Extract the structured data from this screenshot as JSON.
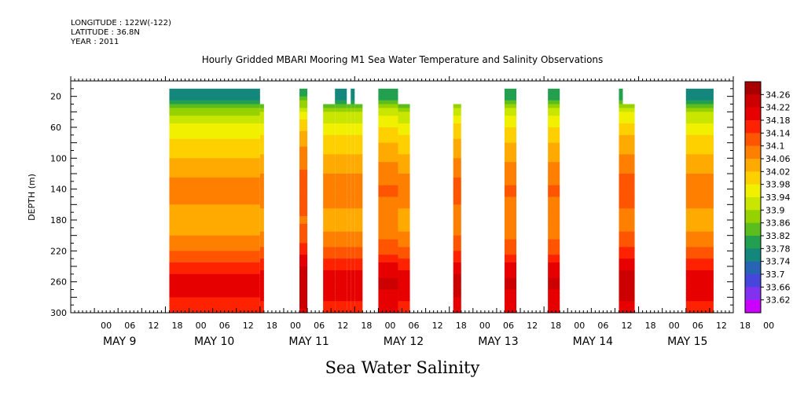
{
  "header": {
    "longitude": "LONGITUDE : 122W(-122)",
    "latitude": "LATITUDE : 36.8N",
    "year": "YEAR : 2011"
  },
  "chart_data": {
    "type": "heatmap",
    "title": "Hourly Gridded MBARI Mooring M1 Sea Water Temperature and Salinity Observations",
    "xlabel": "Sea Water Salinity",
    "ylabel": "DEPTH (m)",
    "ylim": [
      300,
      0
    ],
    "y_ticks": [
      "20",
      "60",
      "100",
      "140",
      "180",
      "220",
      "260",
      "300"
    ],
    "x_hour_ticks": [
      "00",
      "06",
      "12",
      "18",
      "00",
      "06",
      "12",
      "18",
      "00",
      "06",
      "12",
      "18",
      "00",
      "06",
      "12",
      "18",
      "00",
      "06",
      "12",
      "18",
      "00",
      "06",
      "12",
      "18",
      "00",
      "06",
      "12",
      "18",
      "00"
    ],
    "day_labels": [
      "MAY  9",
      "MAY 10",
      "MAY 11",
      "MAY 12",
      "MAY 13",
      "MAY 14",
      "MAY 15"
    ],
    "colorbar": {
      "levels": [
        "34.26",
        "34.22",
        "34.18",
        "34.14",
        "34.1",
        "34.06",
        "34.02",
        "33.98",
        "33.94",
        "33.9",
        "33.86",
        "33.82",
        "33.78",
        "33.74",
        "33.7",
        "33.66",
        "33.62"
      ],
      "colors": [
        "#a80000",
        "#cc0000",
        "#e60000",
        "#ff2200",
        "#ff5500",
        "#ff8000",
        "#ffaa00",
        "#ffd000",
        "#f0f000",
        "#c8e600",
        "#96d200",
        "#5cbe1e",
        "#22a050",
        "#14877c",
        "#2864b4",
        "#4646dc",
        "#8232ee",
        "#cc00ff"
      ]
    },
    "profile_depth": [
      "20",
      "40",
      "60",
      "80",
      "100",
      "120",
      "140",
      "160",
      "180",
      "200",
      "220",
      "240",
      "260",
      "280",
      "300"
    ],
    "profile_salinity": [
      33.76,
      33.9,
      33.96,
      34.0,
      34.03,
      34.06,
      34.09,
      34.07,
      34.04,
      34.07,
      34.11,
      34.17,
      34.21,
      34.19,
      34.16
    ],
    "segments": [
      {
        "start": "May 10 01:00",
        "end": "May 11 00:00",
        "top_depth": 20,
        "offset": -0.01
      },
      {
        "start": "May 11 00:00",
        "end": "May 11 01:00",
        "top_depth": 40,
        "offset": 0.0
      },
      {
        "start": "May 11 10:00",
        "end": "May 11 12:00",
        "top_depth": 20,
        "offset": 0.05
      },
      {
        "start": "May 11 16:00",
        "end": "May 11 19:00",
        "top_depth": 40,
        "offset": 0.0
      },
      {
        "start": "May 11 19:00",
        "end": "May 11 22:00",
        "top_depth": 20,
        "offset": 0.0
      },
      {
        "start": "May 11 22:00",
        "end": "May 11 23:00",
        "top_depth": 40,
        "offset": 0.0
      },
      {
        "start": "May 11 23:00",
        "end": "May 12 00:00",
        "top_depth": 20,
        "offset": 0.0
      },
      {
        "start": "May 12 00:00",
        "end": "May 12 02:00",
        "top_depth": 40,
        "offset": 0.0
      },
      {
        "start": "May 12 06:00",
        "end": "May 12 11:00",
        "top_depth": 20,
        "offset": 0.02
      },
      {
        "start": "May 12 11:00",
        "end": "May 12 14:00",
        "top_depth": 40,
        "offset": 0.0
      },
      {
        "start": "May 13 01:00",
        "end": "May 13 03:00",
        "top_depth": 40,
        "offset": 0.03
      },
      {
        "start": "May 13 14:00",
        "end": "May 13 17:00",
        "top_depth": 20,
        "offset": 0.02
      },
      {
        "start": "May 14 01:00",
        "end": "May 14 04:00",
        "top_depth": 20,
        "offset": 0.02
      },
      {
        "start": "May 14 19:00",
        "end": "May 14 20:00",
        "top_depth": 20,
        "offset": 0.04
      },
      {
        "start": "May 14 20:00",
        "end": "May 14 23:00",
        "top_depth": 40,
        "offset": 0.04
      },
      {
        "start": "May 15 12:00",
        "end": "May 15 19:00",
        "top_depth": 20,
        "offset": 0.0
      }
    ]
  }
}
